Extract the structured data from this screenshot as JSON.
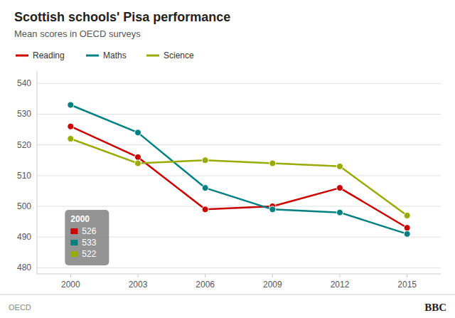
{
  "chart_data": {
    "type": "line",
    "title": "Scottish schools' Pisa performance",
    "subtitle": "Mean scores in OECD surveys",
    "x": [
      2000,
      2003,
      2006,
      2009,
      2012,
      2015
    ],
    "series": [
      {
        "name": "Reading",
        "color": "#cc0000",
        "values": [
          526,
          516,
          499,
          500,
          506,
          493
        ]
      },
      {
        "name": "Maths",
        "color": "#008080",
        "values": [
          533,
          524,
          506,
          499,
          498,
          491
        ]
      },
      {
        "name": "Science",
        "color": "#99aa00",
        "values": [
          522,
          514,
          515,
          514,
          513,
          497
        ]
      }
    ],
    "marker": "circle",
    "xlim": [
      1998.5,
      2016.5
    ],
    "xticks": [
      2000,
      2003,
      2006,
      2009,
      2012,
      2015
    ],
    "ylim": [
      478,
      544
    ],
    "yticks": [
      480,
      490,
      500,
      510,
      520,
      530,
      540
    ],
    "grid": true,
    "legend": "top-left",
    "tooltip": {
      "label": "2000",
      "values": [
        526,
        533,
        522
      ]
    },
    "source": "OECD",
    "brand": "BBC"
  }
}
